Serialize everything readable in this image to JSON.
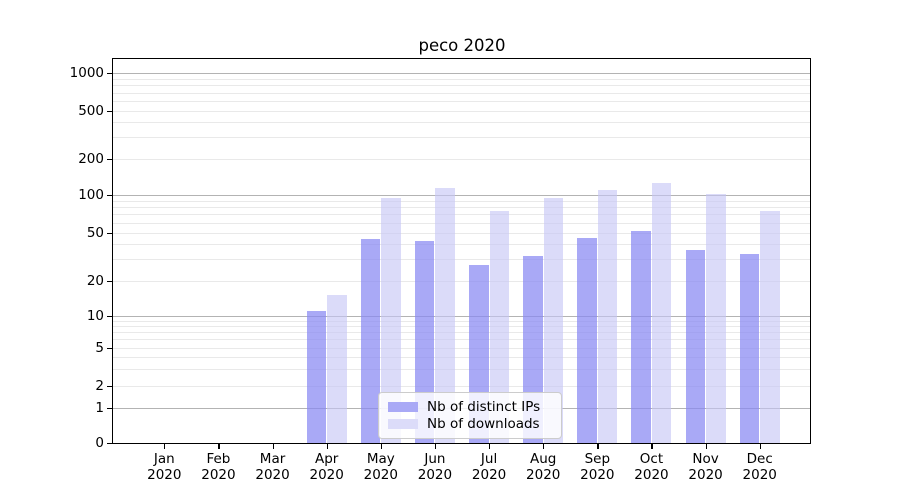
{
  "title": "peco 2020",
  "chart_data": {
    "type": "bar",
    "title": "peco 2020",
    "categories": [
      "Jan 2020",
      "Feb 2020",
      "Mar 2020",
      "Apr 2020",
      "May 2020",
      "Jun 2020",
      "Jul 2020",
      "Aug 2020",
      "Sep 2020",
      "Oct 2020",
      "Nov 2020",
      "Dec 2020"
    ],
    "series": [
      {
        "name": "Nb of distinct IPs",
        "color": "#a9a9f6",
        "values": [
          0,
          0,
          0,
          11,
          44,
          43,
          27,
          32,
          45,
          52,
          36,
          33
        ]
      },
      {
        "name": "Nb of downloads",
        "color": "#dcdcf9",
        "values": [
          0,
          0,
          0,
          15,
          95,
          115,
          75,
          95,
          110,
          125,
          102,
          75
        ]
      }
    ],
    "yscale": "symlog",
    "yticks": [
      0,
      1,
      2,
      5,
      10,
      20,
      50,
      100,
      200,
      500,
      1000
    ],
    "ylim": [
      0,
      1300
    ],
    "xlabel": "",
    "ylabel": "",
    "grid": "horizontal major and minor gridlines",
    "legend_position": "lower center inside plot"
  },
  "legend": {
    "items": [
      {
        "label": "Nb of distinct IPs",
        "color": "#a9a9f6"
      },
      {
        "label": "Nb of downloads",
        "color": "#dcdcf9"
      }
    ]
  },
  "colors": {
    "bar_distinct_ips": "#a9a9f6",
    "bar_downloads": "#dcdcf9",
    "grid_major": "#b3b3b3",
    "grid_minor": "#e9e9e9",
    "spine": "#000000"
  }
}
